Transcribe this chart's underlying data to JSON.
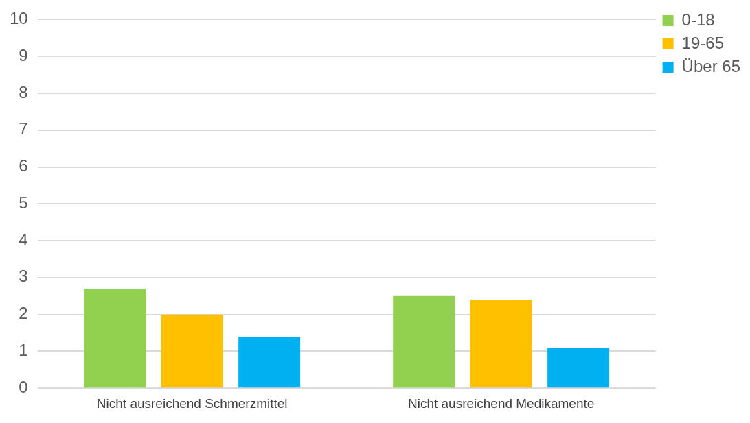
{
  "chart_data": {
    "type": "bar",
    "categories": [
      "Nicht ausreichend Schmerzmittel",
      "Nicht ausreichend Medikamente"
    ],
    "series": [
      {
        "name": "0-18",
        "color": "#92d050",
        "values": [
          2.7,
          2.5
        ]
      },
      {
        "name": "19-65",
        "color": "#ffc000",
        "values": [
          2.0,
          2.4
        ]
      },
      {
        "name": "Über 65",
        "color": "#00b0f0",
        "values": [
          1.4,
          1.1
        ]
      }
    ],
    "ylim": [
      0,
      10
    ],
    "yticks": [
      0,
      1,
      2,
      3,
      4,
      5,
      6,
      7,
      8,
      9,
      10
    ],
    "grid": "y",
    "legend": "top right"
  }
}
